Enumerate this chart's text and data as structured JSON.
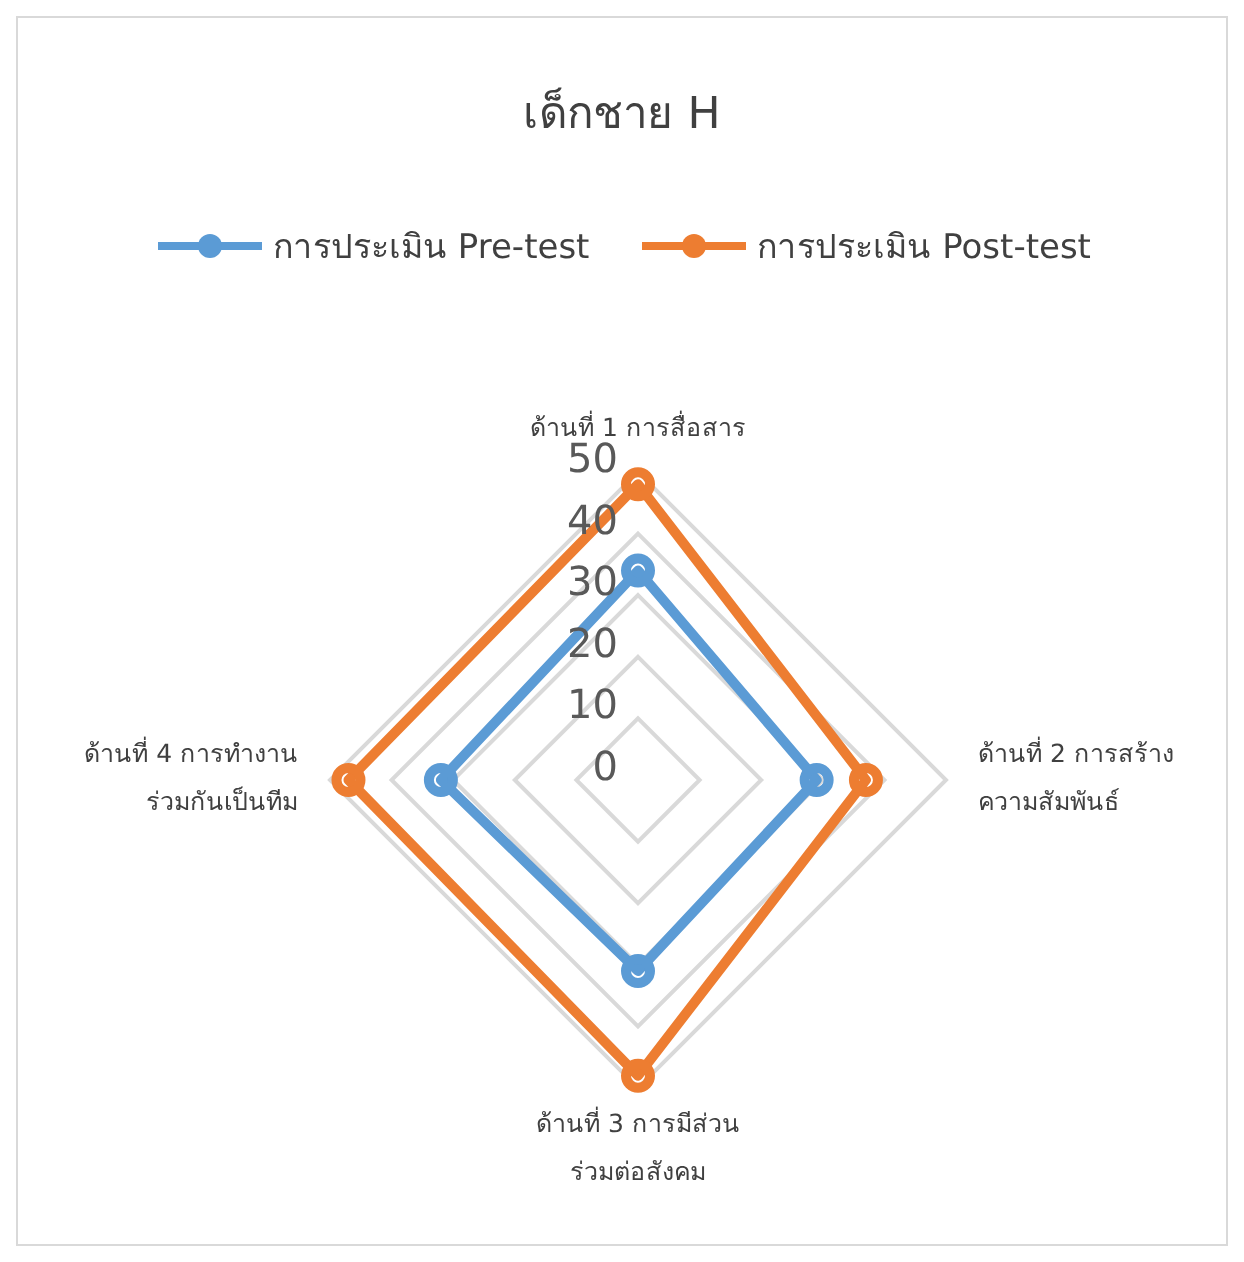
{
  "chart_data": {
    "type": "radar",
    "title": "เด็กชาย H",
    "categories": [
      "ด้านที่ 1 การสื่อสาร",
      "ด้านที่ 2 การสร้าง\nความสัมพันธ์",
      "ด้านที่ 3 การมีส่วน\nร่วมต่อสังคม",
      "ด้านที่ 4 การทำงาน\nร่วมกันเป็นทีม"
    ],
    "series": [
      {
        "name": "การประเมิน Pre-test",
        "color": "#5b9bd5",
        "values": [
          34,
          29,
          31,
          32
        ]
      },
      {
        "name": "การประเมิน Post-test",
        "color": "#ed7d31",
        "values": [
          48,
          37,
          48,
          47
        ]
      }
    ],
    "ylim": [
      0,
      50
    ],
    "yticks": [
      0,
      10,
      20,
      30,
      40,
      50
    ],
    "grid": true,
    "legend": "top",
    "marker": "circle",
    "line_style": "solid"
  }
}
